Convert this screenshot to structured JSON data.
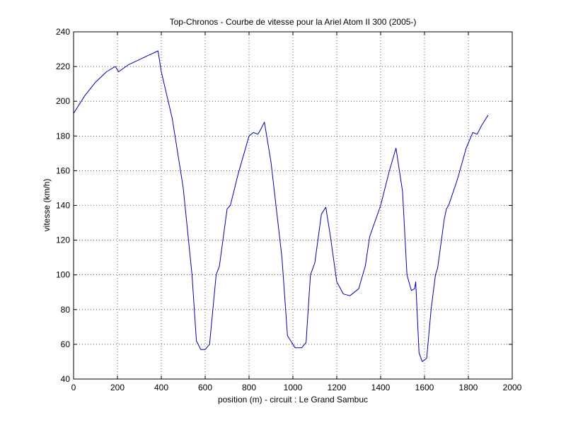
{
  "chart_data": {
    "type": "line",
    "title": "Top-Chronos - Courbe de vitesse pour la Ariel Atom II 300 (2005-)",
    "xlabel": "position (m) - circuit : Le Grand Sambuc",
    "ylabel": "vitesse (km/h)",
    "xlim": [
      0,
      2000
    ],
    "ylim": [
      40,
      240
    ],
    "xticks": [
      0,
      200,
      400,
      600,
      800,
      1000,
      1200,
      1400,
      1600,
      1800,
      2000
    ],
    "yticks": [
      40,
      60,
      80,
      100,
      120,
      140,
      160,
      180,
      200,
      220,
      240
    ],
    "grid": true,
    "line_color": "#0000b4",
    "series": [
      {
        "x": [
          0,
          50,
          100,
          150,
          190,
          205,
          250,
          300,
          350,
          385,
          400,
          450,
          500,
          540,
          560,
          580,
          600,
          620,
          650,
          665,
          700,
          715,
          750,
          800,
          820,
          840,
          850,
          870,
          900,
          950,
          975,
          990,
          1010,
          1040,
          1060,
          1080,
          1100,
          1130,
          1150,
          1170,
          1200,
          1230,
          1260,
          1290,
          1300,
          1330,
          1350,
          1400,
          1440,
          1470,
          1500,
          1520,
          1540,
          1555,
          1560,
          1575,
          1590,
          1610,
          1630,
          1650,
          1660,
          1690,
          1700,
          1710,
          1750,
          1790,
          1820,
          1840,
          1860,
          1890
        ],
        "y": [
          193,
          203,
          211,
          217,
          220,
          217,
          221,
          224,
          227,
          229,
          217,
          190,
          150,
          100,
          62,
          57,
          57,
          60,
          100,
          105,
          138,
          140,
          158,
          180,
          182,
          181,
          183,
          188,
          165,
          110,
          65,
          62,
          58,
          58,
          61,
          100,
          107,
          135,
          139,
          123,
          96,
          89,
          88,
          91,
          92,
          105,
          122,
          140,
          160,
          173,
          148,
          100,
          91,
          92,
          96,
          55,
          50,
          52,
          80,
          100,
          104,
          132,
          138,
          140,
          155,
          173,
          182,
          181,
          186,
          192
        ]
      }
    ]
  }
}
